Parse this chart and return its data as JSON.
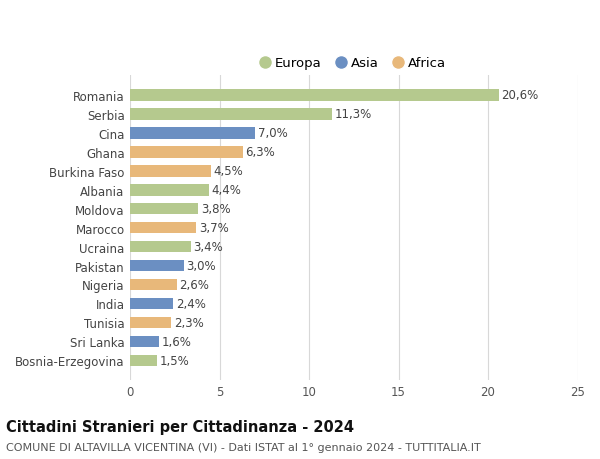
{
  "categories": [
    "Romania",
    "Serbia",
    "Cina",
    "Ghana",
    "Burkina Faso",
    "Albania",
    "Moldova",
    "Marocco",
    "Ucraina",
    "Pakistan",
    "Nigeria",
    "India",
    "Tunisia",
    "Sri Lanka",
    "Bosnia-Erzegovina"
  ],
  "values": [
    20.6,
    11.3,
    7.0,
    6.3,
    4.5,
    4.4,
    3.8,
    3.7,
    3.4,
    3.0,
    2.6,
    2.4,
    2.3,
    1.6,
    1.5
  ],
  "labels": [
    "20,6%",
    "11,3%",
    "7,0%",
    "6,3%",
    "4,5%",
    "4,4%",
    "3,8%",
    "3,7%",
    "3,4%",
    "3,0%",
    "2,6%",
    "2,4%",
    "2,3%",
    "1,6%",
    "1,5%"
  ],
  "continents": [
    "Europa",
    "Europa",
    "Asia",
    "Africa",
    "Africa",
    "Europa",
    "Europa",
    "Africa",
    "Europa",
    "Asia",
    "Africa",
    "Asia",
    "Africa",
    "Asia",
    "Europa"
  ],
  "colors": {
    "Europa": "#b5c98e",
    "Asia": "#6b8fc2",
    "Africa": "#e8b87a"
  },
  "legend_order": [
    "Europa",
    "Asia",
    "Africa"
  ],
  "title": "Cittadini Stranieri per Cittadinanza - 2024",
  "subtitle": "COMUNE DI ALTAVILLA VICENTINA (VI) - Dati ISTAT al 1° gennaio 2024 - TUTTITALIA.IT",
  "xlim": [
    0,
    25
  ],
  "xticks": [
    0,
    5,
    10,
    15,
    20,
    25
  ],
  "bg_color": "#ffffff",
  "plot_bg_color": "#ffffff",
  "grid_color": "#d8d8d8",
  "bar_height": 0.62,
  "title_fontsize": 10.5,
  "subtitle_fontsize": 8,
  "tick_fontsize": 8.5,
  "label_fontsize": 8.5
}
